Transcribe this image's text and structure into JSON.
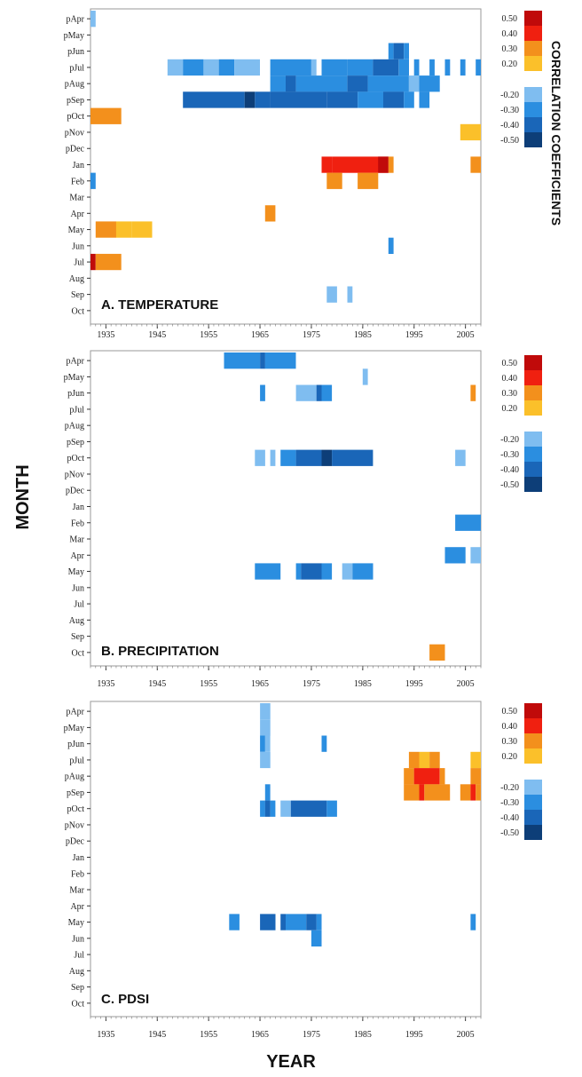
{
  "axis_titles": {
    "x": "YEAR",
    "y": "MONTH",
    "legend": "CORRELATION  COEFFICIENTS"
  },
  "scale": {
    "positive": [
      {
        "label": "0.50",
        "color": "#c00a0a"
      },
      {
        "label": "0.40",
        "color": "#f02010"
      },
      {
        "label": "0.30",
        "color": "#f3901c"
      },
      {
        "label": "0.20",
        "color": "#fbc02a"
      }
    ],
    "negative": [
      {
        "label": "-0.20",
        "color": "#7fbdf0"
      },
      {
        "label": "-0.30",
        "color": "#2b8ee0"
      },
      {
        "label": "-0.40",
        "color": "#1a66b8"
      },
      {
        "label": "-0.50",
        "color": "#0d3e78"
      }
    ]
  },
  "chart_data": [
    {
      "type": "heatmap",
      "title": "A. TEMPERATURE",
      "xlabel": "YEAR",
      "ylabel": "MONTH",
      "x_ticks": [
        "1935",
        "1945",
        "1955",
        "1965",
        "1975",
        "1985",
        "1995",
        "2005"
      ],
      "xlim": [
        1932,
        2008
      ],
      "rows": [
        "pApr",
        "pMay",
        "pJun",
        "pJul",
        "pAug",
        "pSep",
        "pOct",
        "pNov",
        "pDec",
        "Jan",
        "Feb",
        "Mar",
        "Apr",
        "May",
        "Jun",
        "Jul",
        "Aug",
        "Sep",
        "Oct"
      ],
      "cells": [
        {
          "row": "pApr",
          "x0": 1932,
          "x1": 1933,
          "v": -0.2
        },
        {
          "row": "pJun",
          "x0": 1990,
          "x1": 1991,
          "v": -0.3
        },
        {
          "row": "pJun",
          "x0": 1991,
          "x1": 1993,
          "v": -0.4
        },
        {
          "row": "pJun",
          "x0": 1993,
          "x1": 1994,
          "v": -0.3
        },
        {
          "row": "pJul",
          "x0": 1947,
          "x1": 1950,
          "v": -0.2
        },
        {
          "row": "pJul",
          "x0": 1950,
          "x1": 1954,
          "v": -0.3
        },
        {
          "row": "pJul",
          "x0": 1954,
          "x1": 1957,
          "v": -0.2
        },
        {
          "row": "pJul",
          "x0": 1957,
          "x1": 1960,
          "v": -0.3
        },
        {
          "row": "pJul",
          "x0": 1960,
          "x1": 1965,
          "v": -0.2
        },
        {
          "row": "pJul",
          "x0": 1967,
          "x1": 1975,
          "v": -0.3
        },
        {
          "row": "pJul",
          "x0": 1975,
          "x1": 1976,
          "v": -0.2
        },
        {
          "row": "pJul",
          "x0": 1977,
          "x1": 1982,
          "v": -0.3
        },
        {
          "row": "pJul",
          "x0": 1982,
          "x1": 1987,
          "v": -0.3
        },
        {
          "row": "pJul",
          "x0": 1987,
          "x1": 1992,
          "v": -0.4
        },
        {
          "row": "pJul",
          "x0": 1992,
          "x1": 1994,
          "v": -0.3
        },
        {
          "row": "pJul",
          "x0": 1995,
          "x1": 1996,
          "v": -0.3
        },
        {
          "row": "pJul",
          "x0": 1998,
          "x1": 1999,
          "v": -0.3
        },
        {
          "row": "pJul",
          "x0": 2001,
          "x1": 2002,
          "v": -0.3
        },
        {
          "row": "pJul",
          "x0": 2004,
          "x1": 2005,
          "v": -0.3
        },
        {
          "row": "pJul",
          "x0": 2007,
          "x1": 2008,
          "v": -0.3
        },
        {
          "row": "pAug",
          "x0": 1967,
          "x1": 1970,
          "v": -0.3
        },
        {
          "row": "pAug",
          "x0": 1970,
          "x1": 1972,
          "v": -0.4
        },
        {
          "row": "pAug",
          "x0": 1972,
          "x1": 1977,
          "v": -0.3
        },
        {
          "row": "pAug",
          "x0": 1977,
          "x1": 1982,
          "v": -0.3
        },
        {
          "row": "pAug",
          "x0": 1982,
          "x1": 1986,
          "v": -0.4
        },
        {
          "row": "pAug",
          "x0": 1986,
          "x1": 1989,
          "v": -0.3
        },
        {
          "row": "pAug",
          "x0": 1989,
          "x1": 1994,
          "v": -0.3
        },
        {
          "row": "pAug",
          "x0": 1994,
          "x1": 1996,
          "v": -0.2
        },
        {
          "row": "pAug",
          "x0": 1996,
          "x1": 2000,
          "v": -0.3
        },
        {
          "row": "pSep",
          "x0": 1950,
          "x1": 1962,
          "v": -0.4
        },
        {
          "row": "pSep",
          "x0": 1962,
          "x1": 1964,
          "v": -0.5
        },
        {
          "row": "pSep",
          "x0": 1964,
          "x1": 1967,
          "v": -0.4
        },
        {
          "row": "pSep",
          "x0": 1967,
          "x1": 1978,
          "v": -0.4
        },
        {
          "row": "pSep",
          "x0": 1978,
          "x1": 1984,
          "v": -0.4
        },
        {
          "row": "pSep",
          "x0": 1984,
          "x1": 1989,
          "v": -0.3
        },
        {
          "row": "pSep",
          "x0": 1989,
          "x1": 1993,
          "v": -0.4
        },
        {
          "row": "pSep",
          "x0": 1993,
          "x1": 1995,
          "v": -0.3
        },
        {
          "row": "pSep",
          "x0": 1996,
          "x1": 1998,
          "v": -0.3
        },
        {
          "row": "pOct",
          "x0": 1932,
          "x1": 1938,
          "v": 0.3
        },
        {
          "row": "pNov",
          "x0": 2004,
          "x1": 2008,
          "v": 0.2
        },
        {
          "row": "Jan",
          "x0": 1977,
          "x1": 1979,
          "v": 0.4
        },
        {
          "row": "Jan",
          "x0": 1979,
          "x1": 1990,
          "v": 0.4
        },
        {
          "row": "Jan",
          "x0": 1988,
          "x1": 1990,
          "v": 0.5
        },
        {
          "row": "Jan",
          "x0": 1990,
          "x1": 1991,
          "v": 0.3
        },
        {
          "row": "Jan",
          "x0": 2006,
          "x1": 2008,
          "v": 0.3
        },
        {
          "row": "Feb",
          "x0": 1932,
          "x1": 1933,
          "v": -0.3
        },
        {
          "row": "Feb",
          "x0": 1978,
          "x1": 1981,
          "v": 0.3
        },
        {
          "row": "Feb",
          "x0": 1984,
          "x1": 1988,
          "v": 0.3
        },
        {
          "row": "Apr",
          "x0": 1966,
          "x1": 1968,
          "v": 0.3
        },
        {
          "row": "May",
          "x0": 1933,
          "x1": 1937,
          "v": 0.3
        },
        {
          "row": "May",
          "x0": 1937,
          "x1": 1940,
          "v": 0.2
        },
        {
          "row": "May",
          "x0": 1940,
          "x1": 1944,
          "v": 0.2
        },
        {
          "row": "Jun",
          "x0": 1990,
          "x1": 1991,
          "v": -0.3
        },
        {
          "row": "Jul",
          "x0": 1932,
          "x1": 1933,
          "v": 0.5
        },
        {
          "row": "Jul",
          "x0": 1933,
          "x1": 1938,
          "v": 0.3
        },
        {
          "row": "Sep",
          "x0": 1978,
          "x1": 1980,
          "v": -0.2
        },
        {
          "row": "Sep",
          "x0": 1982,
          "x1": 1983,
          "v": -0.2
        }
      ]
    },
    {
      "type": "heatmap",
      "title": "B. PRECIPITATION",
      "xlabel": "YEAR",
      "ylabel": "MONTH",
      "x_ticks": [
        "1935",
        "1945",
        "1955",
        "1965",
        "1975",
        "1985",
        "1995",
        "2005"
      ],
      "xlim": [
        1932,
        2008
      ],
      "rows": [
        "pApr",
        "pMay",
        "pJun",
        "pJul",
        "pAug",
        "pSep",
        "pOct",
        "pNov",
        "pDec",
        "Jan",
        "Feb",
        "Mar",
        "Apr",
        "May",
        "Jun",
        "Jul",
        "Aug",
        "Sep",
        "Oct"
      ],
      "cells": [
        {
          "row": "pApr",
          "x0": 1958,
          "x1": 1965,
          "v": -0.3
        },
        {
          "row": "pApr",
          "x0": 1965,
          "x1": 1966,
          "v": -0.4
        },
        {
          "row": "pApr",
          "x0": 1966,
          "x1": 1972,
          "v": -0.3
        },
        {
          "row": "pMay",
          "x0": 1985,
          "x1": 1986,
          "v": -0.2
        },
        {
          "row": "pJun",
          "x0": 1965,
          "x1": 1966,
          "v": -0.3
        },
        {
          "row": "pJun",
          "x0": 1972,
          "x1": 1976,
          "v": -0.2
        },
        {
          "row": "pJun",
          "x0": 1976,
          "x1": 1977,
          "v": -0.4
        },
        {
          "row": "pJun",
          "x0": 1977,
          "x1": 1979,
          "v": -0.3
        },
        {
          "row": "pJun",
          "x0": 2006,
          "x1": 2007,
          "v": 0.3
        },
        {
          "row": "pOct",
          "x0": 1964,
          "x1": 1966,
          "v": -0.2
        },
        {
          "row": "pOct",
          "x0": 1967,
          "x1": 1968,
          "v": -0.2
        },
        {
          "row": "pOct",
          "x0": 1969,
          "x1": 1972,
          "v": -0.3
        },
        {
          "row": "pOct",
          "x0": 1972,
          "x1": 1977,
          "v": -0.4
        },
        {
          "row": "pOct",
          "x0": 1977,
          "x1": 1979,
          "v": -0.5
        },
        {
          "row": "pOct",
          "x0": 1979,
          "x1": 1987,
          "v": -0.4
        },
        {
          "row": "pOct",
          "x0": 2003,
          "x1": 2005,
          "v": -0.2
        },
        {
          "row": "Feb",
          "x0": 2003,
          "x1": 2008,
          "v": -0.3
        },
        {
          "row": "Apr",
          "x0": 2001,
          "x1": 2005,
          "v": -0.3
        },
        {
          "row": "Apr",
          "x0": 2006,
          "x1": 2008,
          "v": -0.2
        },
        {
          "row": "May",
          "x0": 1964,
          "x1": 1969,
          "v": -0.3
        },
        {
          "row": "May",
          "x0": 1972,
          "x1": 1973,
          "v": -0.3
        },
        {
          "row": "May",
          "x0": 1973,
          "x1": 1977,
          "v": -0.4
        },
        {
          "row": "May",
          "x0": 1977,
          "x1": 1979,
          "v": -0.3
        },
        {
          "row": "May",
          "x0": 1981,
          "x1": 1983,
          "v": -0.2
        },
        {
          "row": "May",
          "x0": 1983,
          "x1": 1987,
          "v": -0.3
        },
        {
          "row": "Oct",
          "x0": 1998,
          "x1": 2001,
          "v": 0.3
        }
      ]
    },
    {
      "type": "heatmap",
      "title": "C. PDSI",
      "xlabel": "YEAR",
      "ylabel": "MONTH",
      "x_ticks": [
        "1935",
        "1945",
        "1955",
        "1965",
        "1975",
        "1985",
        "1995",
        "2005"
      ],
      "xlim": [
        1932,
        2008
      ],
      "rows": [
        "pApr",
        "pMay",
        "pJun",
        "pJul",
        "pAug",
        "pSep",
        "pOct",
        "pNov",
        "pDec",
        "Jan",
        "Feb",
        "Mar",
        "Apr",
        "May",
        "Jun",
        "Jul",
        "Aug",
        "Sep",
        "Oct"
      ],
      "cells": [
        {
          "row": "pApr",
          "x0": 1965,
          "x1": 1967,
          "v": -0.2
        },
        {
          "row": "pMay",
          "x0": 1965,
          "x1": 1967,
          "v": -0.2
        },
        {
          "row": "pJun",
          "x0": 1965,
          "x1": 1966,
          "v": -0.3
        },
        {
          "row": "pJun",
          "x0": 1966,
          "x1": 1967,
          "v": -0.2
        },
        {
          "row": "pJun",
          "x0": 1977,
          "x1": 1978,
          "v": -0.3
        },
        {
          "row": "pJul",
          "x0": 1965,
          "x1": 1967,
          "v": -0.2
        },
        {
          "row": "pJul",
          "x0": 1994,
          "x1": 1996,
          "v": 0.3
        },
        {
          "row": "pJul",
          "x0": 1996,
          "x1": 1998,
          "v": 0.2
        },
        {
          "row": "pJul",
          "x0": 1998,
          "x1": 2000,
          "v": 0.3
        },
        {
          "row": "pJul",
          "x0": 2006,
          "x1": 2008,
          "v": 0.2
        },
        {
          "row": "pAug",
          "x0": 1993,
          "x1": 1995,
          "v": 0.3
        },
        {
          "row": "pAug",
          "x0": 1995,
          "x1": 2000,
          "v": 0.4
        },
        {
          "row": "pAug",
          "x0": 2000,
          "x1": 2001,
          "v": 0.3
        },
        {
          "row": "pAug",
          "x0": 2006,
          "x1": 2008,
          "v": 0.3
        },
        {
          "row": "pSep",
          "x0": 1966,
          "x1": 1967,
          "v": -0.3
        },
        {
          "row": "pSep",
          "x0": 1993,
          "x1": 1996,
          "v": 0.3
        },
        {
          "row": "pSep",
          "x0": 1996,
          "x1": 1997,
          "v": 0.4
        },
        {
          "row": "pSep",
          "x0": 1997,
          "x1": 2002,
          "v": 0.3
        },
        {
          "row": "pSep",
          "x0": 2004,
          "x1": 2006,
          "v": 0.3
        },
        {
          "row": "pSep",
          "x0": 2006,
          "x1": 2007,
          "v": 0.4
        },
        {
          "row": "pSep",
          "x0": 2007,
          "x1": 2008,
          "v": 0.3
        },
        {
          "row": "pOct",
          "x0": 1965,
          "x1": 1966,
          "v": -0.3
        },
        {
          "row": "pOct",
          "x0": 1966,
          "x1": 1967,
          "v": -0.4
        },
        {
          "row": "pOct",
          "x0": 1967,
          "x1": 1968,
          "v": -0.3
        },
        {
          "row": "pOct",
          "x0": 1969,
          "x1": 1971,
          "v": -0.2
        },
        {
          "row": "pOct",
          "x0": 1971,
          "x1": 1978,
          "v": -0.4
        },
        {
          "row": "pOct",
          "x0": 1978,
          "x1": 1980,
          "v": -0.3
        },
        {
          "row": "May",
          "x0": 1959,
          "x1": 1961,
          "v": -0.3
        },
        {
          "row": "May",
          "x0": 1965,
          "x1": 1968,
          "v": -0.4
        },
        {
          "row": "May",
          "x0": 1969,
          "x1": 1970,
          "v": -0.4
        },
        {
          "row": "May",
          "x0": 1970,
          "x1": 1974,
          "v": -0.3
        },
        {
          "row": "May",
          "x0": 1974,
          "x1": 1976,
          "v": -0.4
        },
        {
          "row": "May",
          "x0": 1976,
          "x1": 1977,
          "v": -0.3
        },
        {
          "row": "May",
          "x0": 2006,
          "x1": 2007,
          "v": -0.3
        },
        {
          "row": "Jun",
          "x0": 1975,
          "x1": 1977,
          "v": -0.3
        }
      ]
    }
  ]
}
